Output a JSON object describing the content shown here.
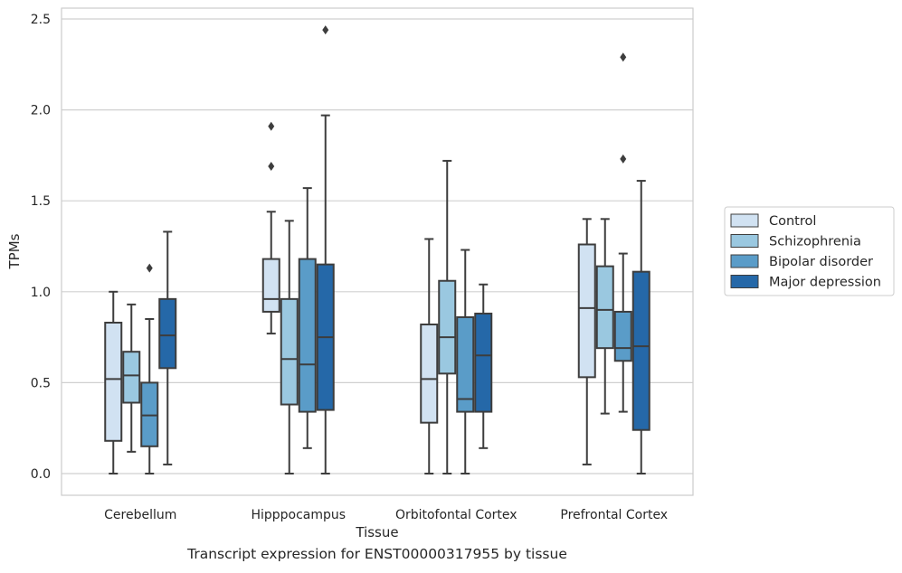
{
  "caption": "Transcript expression for ENST00000317955 by tissue",
  "chart_data": {
    "type": "box",
    "xlabel": "Tissue",
    "ylabel": "TPMs",
    "ylim": [
      -0.12,
      2.57
    ],
    "yticks": [
      0.0,
      0.5,
      1.0,
      1.5,
      2.0,
      2.5
    ],
    "ytick_labels": [
      "0.0",
      "0.5",
      "1.0",
      "1.5",
      "2.0",
      "2.5"
    ],
    "grid": "horizontal",
    "legend_position": "right",
    "categories": [
      "Cerebellum",
      "Hipppocampus",
      "Orbitofontal Cortex",
      "Prefrontal Cortex"
    ],
    "series": [
      {
        "name": "Control",
        "color": "#d1e2f2",
        "boxes": [
          {
            "whislo": 0.0,
            "q1": 0.18,
            "med": 0.52,
            "q3": 0.83,
            "whishi": 1.0,
            "fliers": []
          },
          {
            "whislo": 0.77,
            "q1": 0.89,
            "med": 0.96,
            "q3": 1.18,
            "whishi": 1.44,
            "fliers": [
              1.69,
              1.91
            ]
          },
          {
            "whislo": 0.0,
            "q1": 0.28,
            "med": 0.52,
            "q3": 0.82,
            "whishi": 1.29,
            "fliers": []
          },
          {
            "whislo": 0.05,
            "q1": 0.53,
            "med": 0.91,
            "q3": 1.26,
            "whishi": 1.4,
            "fliers": []
          }
        ]
      },
      {
        "name": "Schizophrenia",
        "color": "#9ac8e0",
        "boxes": [
          {
            "whislo": 0.12,
            "q1": 0.39,
            "med": 0.54,
            "q3": 0.67,
            "whishi": 0.93,
            "fliers": []
          },
          {
            "whislo": 0.0,
            "q1": 0.38,
            "med": 0.63,
            "q3": 0.96,
            "whishi": 1.39,
            "fliers": []
          },
          {
            "whislo": 0.0,
            "q1": 0.55,
            "med": 0.75,
            "q3": 1.06,
            "whishi": 1.72,
            "fliers": []
          },
          {
            "whislo": 0.33,
            "q1": 0.69,
            "med": 0.9,
            "q3": 1.14,
            "whishi": 1.4,
            "fliers": []
          }
        ]
      },
      {
        "name": "Bipolar disorder",
        "color": "#5a9cc8",
        "boxes": [
          {
            "whislo": 0.0,
            "q1": 0.15,
            "med": 0.32,
            "q3": 0.5,
            "whishi": 0.85,
            "fliers": [
              1.13
            ]
          },
          {
            "whislo": 0.14,
            "q1": 0.34,
            "med": 0.6,
            "q3": 1.18,
            "whishi": 1.57,
            "fliers": []
          },
          {
            "whislo": 0.0,
            "q1": 0.34,
            "med": 0.41,
            "q3": 0.86,
            "whishi": 1.23,
            "fliers": []
          },
          {
            "whislo": 0.34,
            "q1": 0.62,
            "med": 0.69,
            "q3": 0.89,
            "whishi": 1.21,
            "fliers": [
              1.73,
              2.29
            ]
          }
        ]
      },
      {
        "name": "Major depression",
        "color": "#2568a8",
        "boxes": [
          {
            "whislo": 0.05,
            "q1": 0.58,
            "med": 0.76,
            "q3": 0.96,
            "whishi": 1.33,
            "fliers": []
          },
          {
            "whislo": 0.0,
            "q1": 0.35,
            "med": 0.75,
            "q3": 1.15,
            "whishi": 1.97,
            "fliers": [
              2.44
            ]
          },
          {
            "whislo": 0.14,
            "q1": 0.34,
            "med": 0.65,
            "q3": 0.88,
            "whishi": 1.04,
            "fliers": []
          },
          {
            "whislo": 0.0,
            "q1": 0.24,
            "med": 0.7,
            "q3": 1.11,
            "whishi": 1.61,
            "fliers": []
          }
        ]
      }
    ]
  }
}
